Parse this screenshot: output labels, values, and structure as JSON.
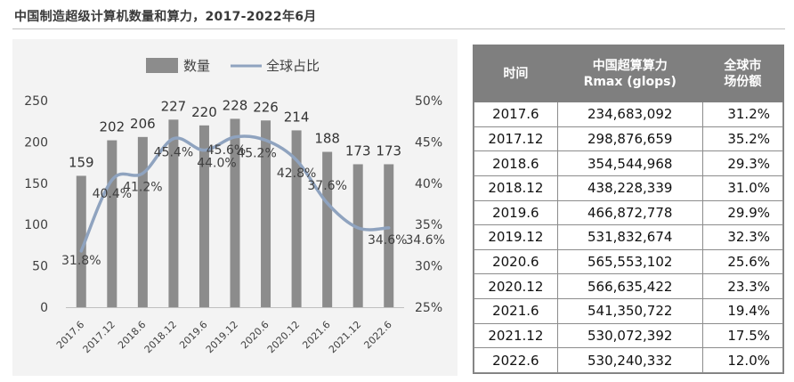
{
  "title": "中国制造超级计算机数量和算力，2017-2022年6月",
  "chart_data": {
    "type": "bar",
    "categories": [
      "2017.6",
      "2017.12",
      "2018.6",
      "2018.12",
      "2019.6",
      "2019.12",
      "2020.6",
      "2020.12",
      "2021.6",
      "2021.12",
      "2022.6"
    ],
    "series": [
      {
        "name": "数量",
        "type": "bar",
        "axis": "left",
        "color": "#8c8c8c",
        "values": [
          159,
          202,
          206,
          227,
          220,
          228,
          226,
          214,
          188,
          173,
          173
        ],
        "labels": [
          "159",
          "202",
          "206",
          "227",
          "220",
          "228",
          "226",
          "214",
          "188",
          "173",
          "173"
        ]
      },
      {
        "name": "全球占比",
        "type": "line",
        "axis": "right",
        "color": "#8fa3bf",
        "values": [
          31.8,
          40.4,
          41.2,
          45.4,
          44.0,
          45.6,
          45.2,
          42.8,
          37.6,
          34.6,
          34.6
        ],
        "labels": [
          "31.8%",
          "40.4%",
          "41.2%",
          "45.4%",
          "44.0%",
          "45.6%",
          "45.2%",
          "42.8%",
          "37.6%",
          "34.6%",
          "34.6%"
        ]
      }
    ],
    "y_left": {
      "ticks": [
        "0",
        "50",
        "100",
        "150",
        "200",
        "250"
      ],
      "range": [
        0,
        250
      ]
    },
    "y_right": {
      "ticks": [
        "25%",
        "30%",
        "35%",
        "40%",
        "45%",
        "50%"
      ],
      "range": [
        25,
        50
      ]
    },
    "legend_position": "top",
    "grid": false
  },
  "table": {
    "headers": [
      [
        "时间"
      ],
      [
        "中国超算算力",
        "Rmax (glops)"
      ],
      [
        "全球市",
        "场份额"
      ]
    ],
    "rows": [
      [
        "2017.6",
        "234,683,092",
        "31.2%"
      ],
      [
        "2017.12",
        "298,876,659",
        "35.2%"
      ],
      [
        "2018.6",
        "354,544,968",
        "29.3%"
      ],
      [
        "2018.12",
        "438,228,339",
        "31.0%"
      ],
      [
        "2019.6",
        "466,872,778",
        "29.9%"
      ],
      [
        "2019.12",
        "531,832,674",
        "32.3%"
      ],
      [
        "2020.6",
        "565,553,102",
        "25.6%"
      ],
      [
        "2020.12",
        "566,635,422",
        "23.3%"
      ],
      [
        "2021.6",
        "541,350,722",
        "19.4%"
      ],
      [
        "2021.12",
        "530,072,392",
        "17.5%"
      ],
      [
        "2022.6",
        "530,240,332",
        "12.0%"
      ]
    ]
  }
}
